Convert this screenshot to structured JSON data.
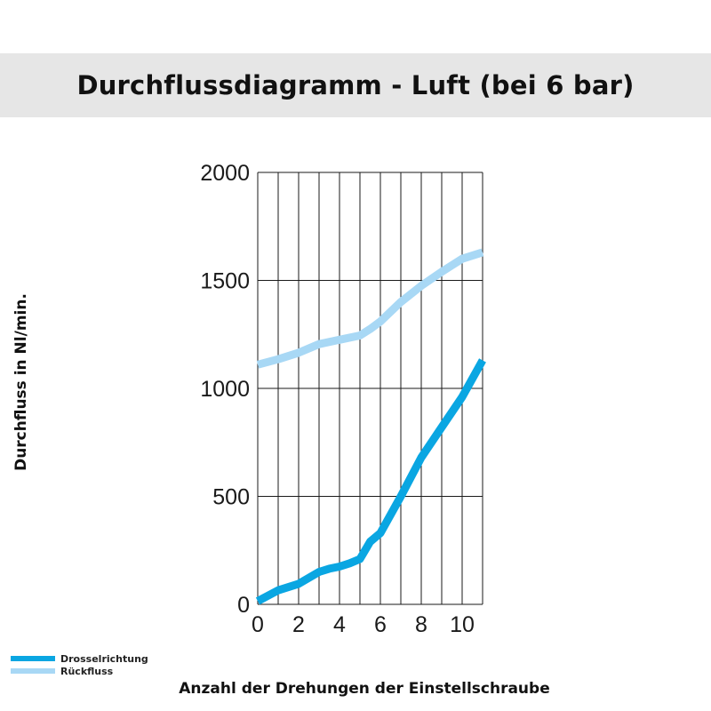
{
  "header": {
    "title": "Durchflussdiagramm - Luft (bei 6 bar)"
  },
  "chart_data": {
    "type": "line",
    "title": "Durchflussdiagramm - Luft (bei 6 bar)",
    "xlabel": "Anzahl der Drehungen der Einstellschraube",
    "ylabel": "Durchfluss in Nl/min.",
    "xlim": [
      0,
      11
    ],
    "ylim": [
      0,
      2000
    ],
    "x_ticks": [
      0,
      2,
      4,
      6,
      8,
      10
    ],
    "y_ticks": [
      0,
      500,
      1000,
      1500,
      2000
    ],
    "x_grid_step": 1,
    "grid": true,
    "legend_position": "bottom-left",
    "series": [
      {
        "name": "Drosselrichtung",
        "color": "#0aa6e2",
        "x": [
          0,
          1,
          2,
          3,
          3.5,
          4,
          4.5,
          5,
          5.5,
          6,
          7,
          8,
          9,
          10,
          11
        ],
        "y": [
          15,
          65,
          95,
          150,
          165,
          175,
          190,
          210,
          290,
          330,
          500,
          680,
          820,
          960,
          1130
        ]
      },
      {
        "name": "Rückfluss",
        "color": "#a8d8f5",
        "x": [
          0,
          1,
          2,
          3,
          4,
          5,
          5.5,
          6,
          7,
          8,
          9,
          10,
          11
        ],
        "y": [
          1110,
          1135,
          1165,
          1205,
          1225,
          1245,
          1275,
          1310,
          1400,
          1475,
          1540,
          1600,
          1630
        ]
      }
    ]
  }
}
